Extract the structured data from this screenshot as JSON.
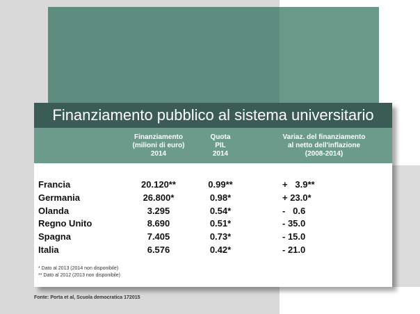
{
  "title": "Finanziamento pubblico al sistema universitario",
  "headers": {
    "col1": [
      "Finanziamento",
      "(milioni di euro)",
      "2014"
    ],
    "col2": [
      "Quota",
      "PIL",
      "2014"
    ],
    "col3": [
      "Variaz. del finanziamento",
      "al netto dell'inflazione",
      "(2008-2014)"
    ]
  },
  "rows": [
    {
      "country": "Francia",
      "fin": "20.120**",
      "pil": "0.99**",
      "var": "+   3.9**"
    },
    {
      "country": "Germania",
      "fin": "26.800*",
      "pil": "0.98*",
      "var": "+ 23.0*"
    },
    {
      "country": "Olanda",
      "fin": "3.295",
      "pil": "0.54*",
      "var": "-   0.6"
    },
    {
      "country": "Regno Unito",
      "fin": "8.690",
      "pil": "0.51*",
      "var": "- 35.0"
    },
    {
      "country": "Spagna",
      "fin": "7.405",
      "pil": "0.73*",
      "var": "- 15.0"
    },
    {
      "country": "Italia",
      "fin": "6.576",
      "pil": "0.42*",
      "var": "- 21.0"
    }
  ],
  "notes": [
    "* Dato al 2013 (2014 non disponibile)",
    "** Dato al 2012 (2013 non disponibile)"
  ],
  "source": "Fonte: Porta et al, Scuola democratica 172015",
  "colors": {
    "title_bar": "#3b5c54",
    "header_bar": "#6c9b8b",
    "green_block": "#5e8c7e",
    "background_gray": "#d9d9d9"
  },
  "chart_data": {
    "type": "table",
    "title": "Finanziamento pubblico al sistema universitario",
    "columns": [
      "Finanziamento (milioni di euro) 2014",
      "Quota PIL 2014",
      "Variaz. del finanziamento al netto dell'inflazione (2008-2014)"
    ],
    "rows": [
      {
        "name": "Francia",
        "values": [
          20120,
          0.99,
          3.9
        ]
      },
      {
        "name": "Germania",
        "values": [
          26800,
          0.98,
          23.0
        ]
      },
      {
        "name": "Olanda",
        "values": [
          3295,
          0.54,
          -0.6
        ]
      },
      {
        "name": "Regno Unito",
        "values": [
          8690,
          0.51,
          -35.0
        ]
      },
      {
        "name": "Spagna",
        "values": [
          7405,
          0.73,
          -15.0
        ]
      },
      {
        "name": "Italia",
        "values": [
          6576,
          0.42,
          -21.0
        ]
      }
    ]
  }
}
